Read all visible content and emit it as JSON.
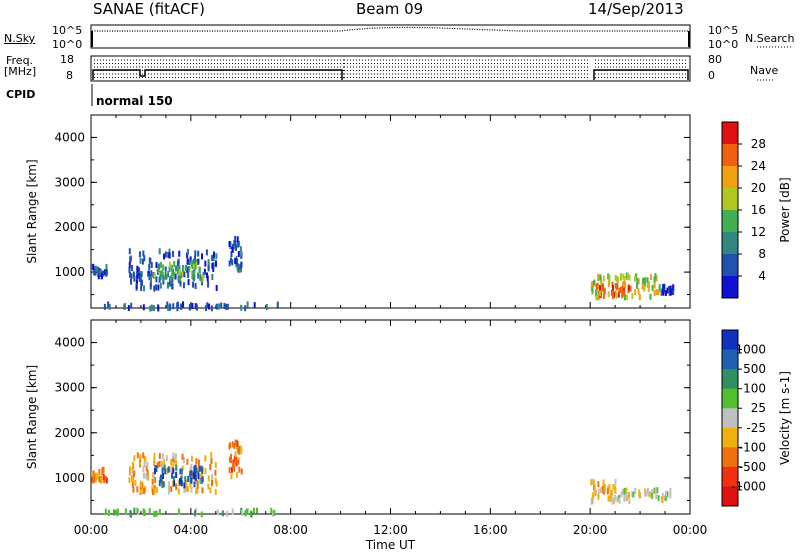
{
  "header": {
    "station": "SANAE (fitACF)",
    "beam": "Beam 09",
    "date": "14/Sep/2013"
  },
  "left_labels": {
    "nsky": "N.Sky",
    "freq": "Freq.",
    "freq_unit": "[MHz]",
    "cpid": "CPID"
  },
  "right_labels": {
    "nsearch": "N.Search",
    "nave": "Nave"
  },
  "strip_ticks": {
    "nsky_top": "10^5",
    "nsky_bottom": "10^0",
    "nsearch_top": "10^5",
    "nsearch_bottom": "10^0",
    "freq_top": "18",
    "freq_bottom": "8",
    "nave_top": "80",
    "nave_bottom": "0"
  },
  "cpid_value": "normal 150",
  "chart_data": [
    {
      "type": "heatmap",
      "panel": "power",
      "ylabel": "Slant Range [km]",
      "ylim": [
        200,
        4500
      ],
      "yticks": [
        "1000",
        "2000",
        "3000",
        "4000"
      ],
      "colorbar_label": "Power [dB]",
      "colorbar_ticks": [
        "4",
        "8",
        "12",
        "16",
        "20",
        "24",
        "28"
      ],
      "colorbar_colors": [
        "#1010d0",
        "#2050b0",
        "#308880",
        "#40b050",
        "#b0c820",
        "#f0a010",
        "#f06010",
        "#e01010"
      ],
      "clusters": [
        {
          "t_start": 0.0,
          "t_end": 0.6,
          "r_min": 950,
          "r_max": 1200,
          "level": 1
        },
        {
          "t_start": 1.5,
          "t_end": 5.0,
          "r_min": 700,
          "r_max": 1550,
          "level": 1
        },
        {
          "t_start": 2.5,
          "t_end": 4.5,
          "r_min": 900,
          "r_max": 1300,
          "level": 3
        },
        {
          "t_start": 5.5,
          "t_end": 6.0,
          "r_min": 1100,
          "r_max": 1850,
          "level": 1
        },
        {
          "t_start": 20.0,
          "t_end": 22.8,
          "r_min": 500,
          "r_max": 1000,
          "level": 4
        },
        {
          "t_start": 20.2,
          "t_end": 21.6,
          "r_min": 500,
          "r_max": 800,
          "level": 6
        },
        {
          "t_start": 22.8,
          "t_end": 23.3,
          "r_min": 600,
          "r_max": 750,
          "level": 1
        },
        {
          "t_start": 0.5,
          "t_end": 7.5,
          "r_min": 250,
          "r_max": 350,
          "level": 1
        }
      ]
    },
    {
      "type": "heatmap",
      "panel": "velocity",
      "xlabel": "Time UT",
      "ylabel": "Slant Range [km]",
      "ylim": [
        200,
        4500
      ],
      "yticks": [
        "1000",
        "2000",
        "3000",
        "4000"
      ],
      "xticks": [
        "00:00",
        "04:00",
        "08:00",
        "12:00",
        "16:00",
        "20:00",
        "00:00"
      ],
      "xlim": [
        0,
        24
      ],
      "colorbar_label": "Velocity [m s-1]",
      "colorbar_ticks": [
        "1000",
        "500",
        "100",
        "25",
        "-25",
        "-100",
        "-500",
        "-1000"
      ],
      "colorbar_colors": [
        "#1030c0",
        "#2060b0",
        "#309060",
        "#50c030",
        "#c0c0c0",
        "#f0b010",
        "#f07010",
        "#f03010",
        "#e01010"
      ],
      "clusters": [
        {
          "t_start": 0.0,
          "t_end": 0.6,
          "r_min": 1000,
          "r_max": 1250,
          "level": 6
        },
        {
          "t_start": 1.5,
          "t_end": 5.0,
          "r_min": 750,
          "r_max": 1600,
          "level": 5
        },
        {
          "t_start": 2.5,
          "t_end": 4.5,
          "r_min": 900,
          "r_max": 1300,
          "level": 1
        },
        {
          "t_start": 5.5,
          "t_end": 6.0,
          "r_min": 1100,
          "r_max": 1850,
          "level": 6
        },
        {
          "t_start": 20.0,
          "t_end": 21.0,
          "r_min": 500,
          "r_max": 1000,
          "level": 5
        },
        {
          "t_start": 21.0,
          "t_end": 23.3,
          "r_min": 550,
          "r_max": 800,
          "level": 4
        },
        {
          "t_start": 0.5,
          "t_end": 7.5,
          "r_min": 250,
          "r_max": 350,
          "level": 3
        }
      ]
    }
  ]
}
